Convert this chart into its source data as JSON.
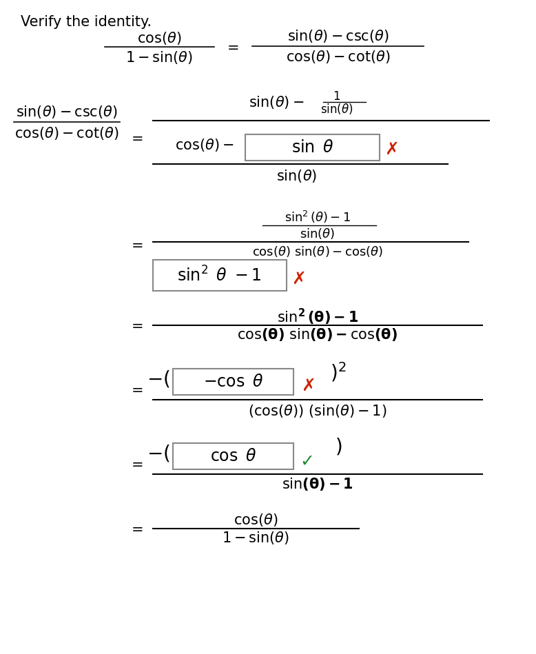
{
  "title": "Verify the identity.",
  "bg_color": "#ffffff",
  "text_color": "#000000",
  "box_color": "#888888",
  "red_x_color": "#cc2200",
  "green_check_color": "#228833",
  "fig_width": 7.78,
  "fig_height": 9.49,
  "font_family": "DejaVu Sans"
}
